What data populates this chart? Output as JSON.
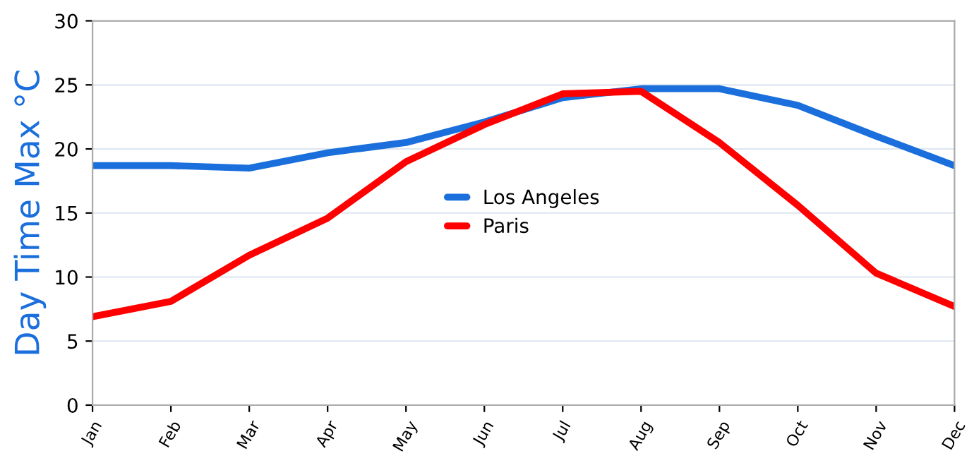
{
  "chart_data": {
    "type": "line",
    "ylabel": "Day Time Max °C",
    "categories": [
      "Jan",
      "Feb",
      "Mar",
      "Apr",
      "May",
      "Jun",
      "Jul",
      "Aug",
      "Sep",
      "Oct",
      "Nov",
      "Dec"
    ],
    "series": [
      {
        "name": "Los Angeles",
        "color": "#1a6fdc",
        "values": [
          18.7,
          18.7,
          18.5,
          19.7,
          20.5,
          22.1,
          24.0,
          24.7,
          24.7,
          23.4,
          21.0,
          18.7
        ]
      },
      {
        "name": "Paris",
        "color": "#ff0000",
        "values": [
          6.9,
          8.1,
          11.7,
          14.6,
          19.0,
          21.9,
          24.3,
          24.5,
          20.5,
          15.6,
          10.3,
          7.7
        ]
      }
    ],
    "ylim": [
      0,
      30
    ],
    "yticks": [
      0,
      5,
      10,
      15,
      20,
      25,
      30
    ],
    "grid": "y",
    "legend": "center",
    "marker": "none",
    "line_style": "solid"
  }
}
